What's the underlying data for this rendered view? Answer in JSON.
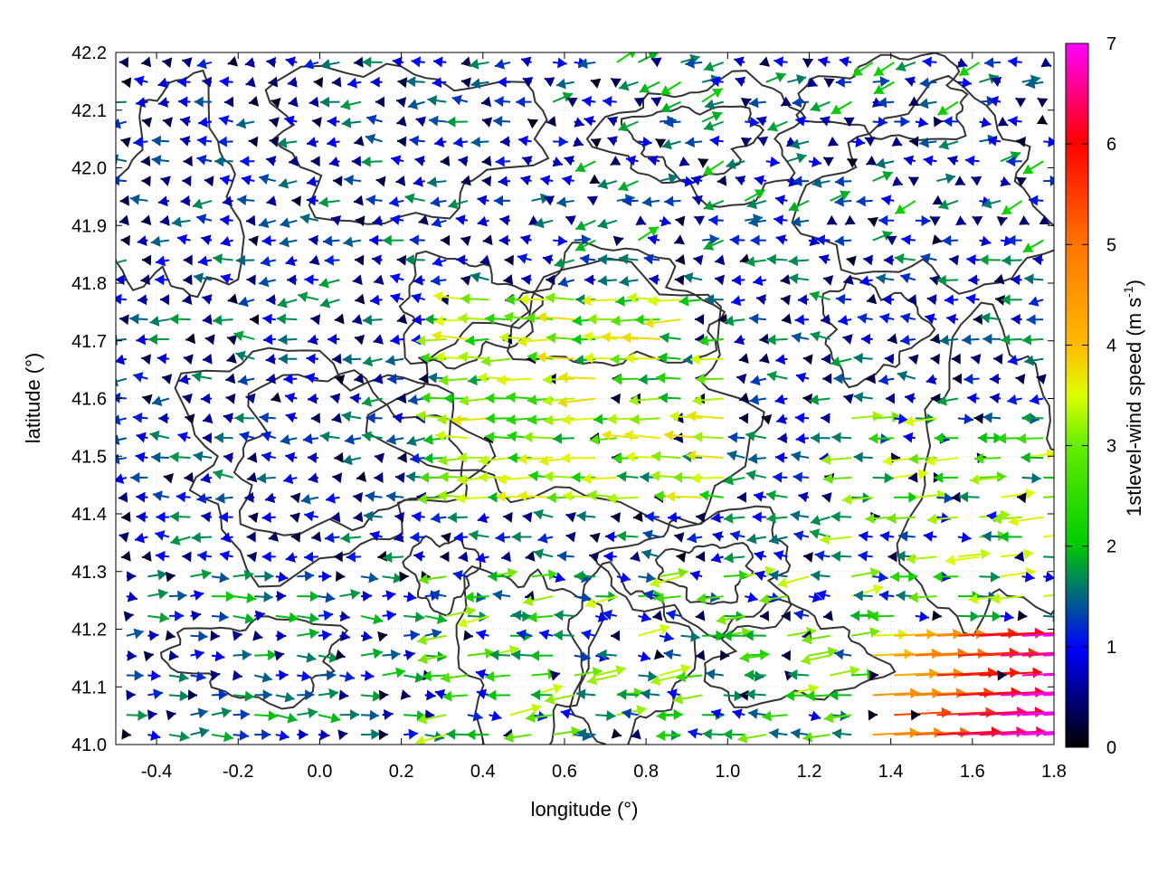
{
  "chart_data": {
    "type": "vector-field",
    "xlabel": "longitude (°)",
    "ylabel": "latitude (°)",
    "xlim": [
      -0.5,
      1.8
    ],
    "ylim": [
      41.0,
      42.2
    ],
    "xticks": [
      -0.4,
      -0.2,
      0.0,
      0.2,
      0.4,
      0.6,
      0.8,
      1.0,
      1.2,
      1.4,
      1.6,
      1.8
    ],
    "xtick_labels": [
      "-0.4",
      "-0.2",
      "0.0",
      "0.2",
      "0.4",
      "0.6",
      "0.8",
      "1.0",
      "1.2",
      "1.4",
      "1.6",
      "1.8"
    ],
    "yticks": [
      41.0,
      41.1,
      41.2,
      41.3,
      41.4,
      41.5,
      41.6,
      41.7,
      41.8,
      41.9,
      42.0,
      42.1,
      42.2
    ],
    "ytick_labels": [
      "41.0",
      "41.1",
      "41.2",
      "41.3",
      "41.4",
      "41.5",
      "41.6",
      "41.7",
      "41.8",
      "41.9",
      "42.0",
      "42.1",
      "42.2"
    ],
    "grid": true,
    "colorbar": {
      "label_main": "1stlevel-wind speed (m s",
      "label_sup": "-1",
      "label_close": ")",
      "range": [
        0,
        7
      ],
      "ticks": [
        0,
        1,
        2,
        3,
        4,
        5,
        6,
        7
      ],
      "tick_labels": [
        "0",
        "1",
        "2",
        "3",
        "4",
        "5",
        "6",
        "7"
      ],
      "palette": [
        "#000000",
        "#0000ff",
        "#00cc00",
        "#ffff00",
        "#ffa500",
        "#ff0000",
        "#ff00ff"
      ]
    },
    "contour_color": "#333333",
    "vector_grid": {
      "nx": 44,
      "ny": 35,
      "jitter_percent": 0
    },
    "wind_regions": [
      {
        "region": "central band lon 0.35-1.0, lat 41.45-41.75",
        "direction": "westward",
        "speed_range": [
          1.5,
          3.5
        ]
      },
      {
        "region": "south-east corner lon 1.4-1.8, lat 41.0-41.2",
        "direction": "eastward",
        "speed_range": [
          4,
          7
        ]
      },
      {
        "region": "north-west lon -0.5-0.3, lat 41.3-42.2",
        "direction": "westward",
        "speed_range": [
          0.5,
          2
        ]
      },
      {
        "region": "south-west lon -0.5-0.3, lat 41.0-41.3",
        "direction": "eastward",
        "speed_range": [
          0.5,
          2
        ]
      }
    ]
  }
}
